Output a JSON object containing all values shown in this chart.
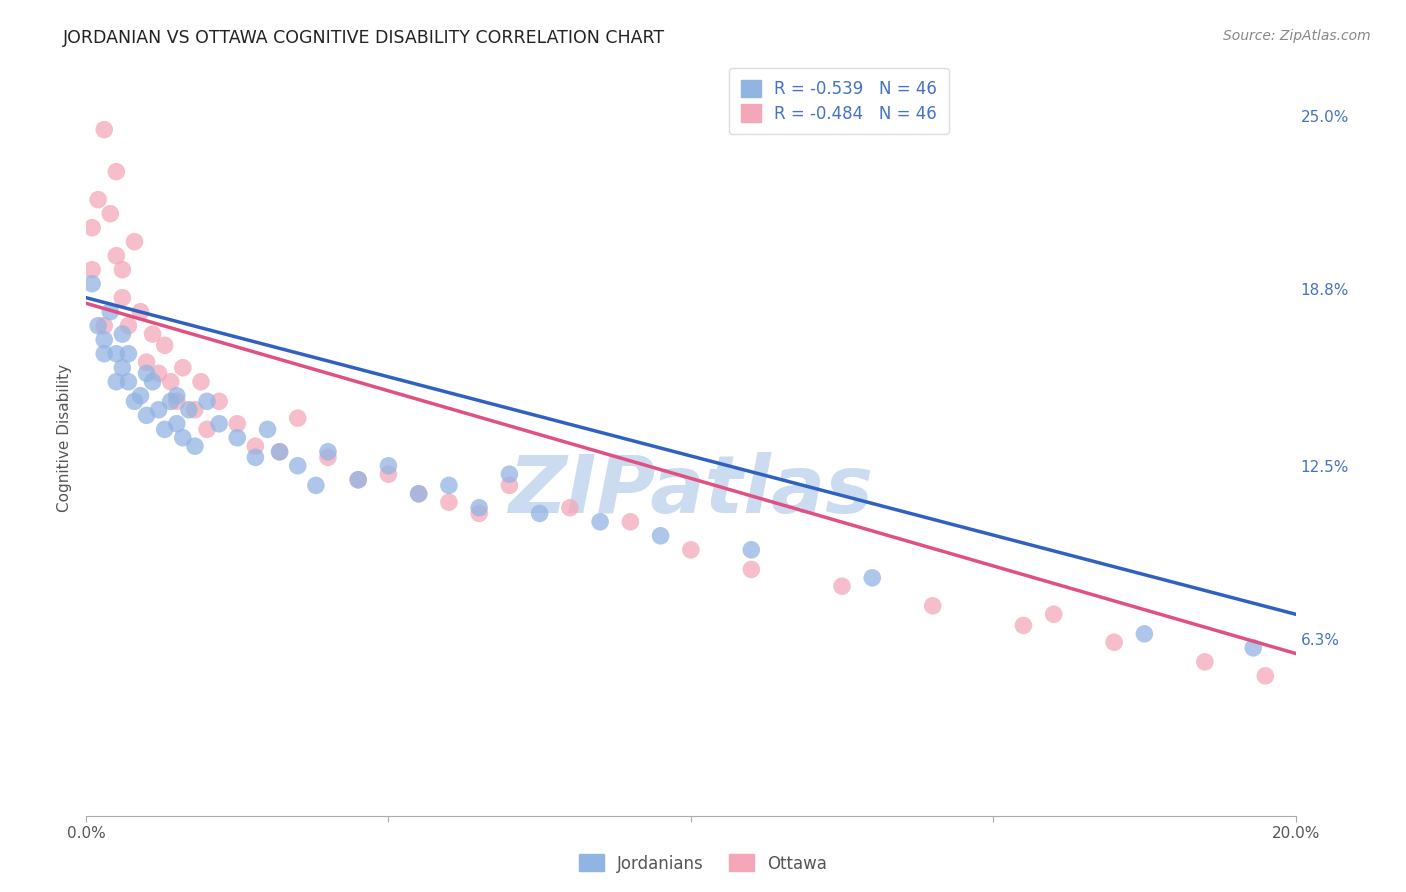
{
  "title": "JORDANIAN VS OTTAWA COGNITIVE DISABILITY CORRELATION CHART",
  "source": "Source: ZipAtlas.com",
  "ylabel": "Cognitive Disability",
  "xlim": [
    0.0,
    0.2
  ],
  "ylim": [
    0.0,
    0.27
  ],
  "yticks": [
    0.063,
    0.125,
    0.188,
    0.25
  ],
  "ytick_labels": [
    "6.3%",
    "12.5%",
    "18.8%",
    "25.0%"
  ],
  "xticks": [
    0.0,
    0.05,
    0.1,
    0.15,
    0.2
  ],
  "xtick_labels": [
    "0.0%",
    "",
    "",
    "",
    "20.0%"
  ],
  "r_jordanian": -0.539,
  "n_jordanian": 46,
  "r_ottawa": -0.484,
  "n_ottawa": 46,
  "color_jordanian": "#92b4e3",
  "color_ottawa": "#f4a7b9",
  "line_color_jordanian": "#3060c0",
  "line_color_ottawa": "#e05080",
  "watermark_text": "ZIPatlas",
  "watermark_color": "#ccdcf0",
  "legend_jordanian": "Jordanians",
  "legend_ottawa": "Ottawa",
  "line_j_x0": 0.0,
  "line_j_y0": 0.185,
  "line_j_x1": 0.2,
  "line_j_y1": 0.072,
  "line_o_x0": 0.0,
  "line_o_y0": 0.183,
  "line_o_x1": 0.2,
  "line_o_y1": 0.058,
  "jordanian_x": [
    0.001,
    0.002,
    0.003,
    0.003,
    0.004,
    0.005,
    0.005,
    0.006,
    0.006,
    0.007,
    0.007,
    0.008,
    0.009,
    0.01,
    0.01,
    0.011,
    0.012,
    0.013,
    0.014,
    0.015,
    0.015,
    0.016,
    0.017,
    0.018,
    0.02,
    0.022,
    0.025,
    0.028,
    0.03,
    0.032,
    0.035,
    0.038,
    0.04,
    0.045,
    0.05,
    0.055,
    0.06,
    0.065,
    0.07,
    0.075,
    0.085,
    0.095,
    0.11,
    0.13,
    0.175,
    0.193
  ],
  "jordanian_y": [
    0.19,
    0.175,
    0.17,
    0.165,
    0.18,
    0.155,
    0.165,
    0.16,
    0.172,
    0.155,
    0.165,
    0.148,
    0.15,
    0.158,
    0.143,
    0.155,
    0.145,
    0.138,
    0.148,
    0.14,
    0.15,
    0.135,
    0.145,
    0.132,
    0.148,
    0.14,
    0.135,
    0.128,
    0.138,
    0.13,
    0.125,
    0.118,
    0.13,
    0.12,
    0.125,
    0.115,
    0.118,
    0.11,
    0.122,
    0.108,
    0.105,
    0.1,
    0.095,
    0.085,
    0.065,
    0.06
  ],
  "ottawa_x": [
    0.001,
    0.001,
    0.002,
    0.003,
    0.003,
    0.004,
    0.005,
    0.005,
    0.006,
    0.006,
    0.007,
    0.008,
    0.009,
    0.01,
    0.011,
    0.012,
    0.013,
    0.014,
    0.015,
    0.016,
    0.018,
    0.019,
    0.02,
    0.022,
    0.025,
    0.028,
    0.032,
    0.035,
    0.04,
    0.045,
    0.05,
    0.055,
    0.06,
    0.065,
    0.07,
    0.08,
    0.09,
    0.1,
    0.11,
    0.125,
    0.14,
    0.155,
    0.16,
    0.17,
    0.185,
    0.195
  ],
  "ottawa_y": [
    0.195,
    0.21,
    0.22,
    0.175,
    0.245,
    0.215,
    0.23,
    0.2,
    0.185,
    0.195,
    0.175,
    0.205,
    0.18,
    0.162,
    0.172,
    0.158,
    0.168,
    0.155,
    0.148,
    0.16,
    0.145,
    0.155,
    0.138,
    0.148,
    0.14,
    0.132,
    0.13,
    0.142,
    0.128,
    0.12,
    0.122,
    0.115,
    0.112,
    0.108,
    0.118,
    0.11,
    0.105,
    0.095,
    0.088,
    0.082,
    0.075,
    0.068,
    0.072,
    0.062,
    0.055,
    0.05
  ]
}
